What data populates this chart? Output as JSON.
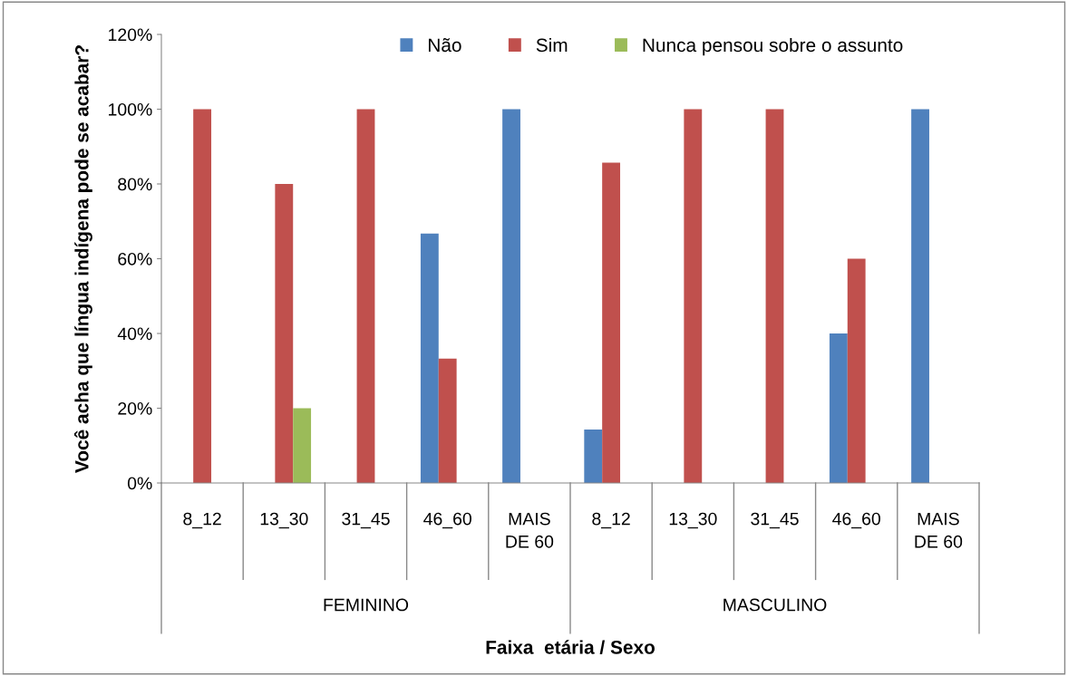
{
  "chart_data": {
    "type": "bar",
    "ylabel": "Você acha que língua indígena pode se acabar?",
    "xlabel": "Faixa  etária / Sexo",
    "categories": [
      "8_12",
      "13_30",
      "31_45",
      "46_60",
      "MAIS\nDE 60",
      "8_12",
      "13_30",
      "31_45",
      "46_60",
      "MAIS\nDE 60"
    ],
    "annotations": [
      "FEMININO",
      "MASCULINO"
    ],
    "series": [
      {
        "name": "Não",
        "color": "#4f81bd",
        "values": [
          null,
          null,
          null,
          66.7,
          100,
          14.3,
          null,
          null,
          40,
          100
        ]
      },
      {
        "name": "Sim",
        "color": "#c0504d",
        "values": [
          100,
          80,
          100,
          33.3,
          null,
          85.7,
          100,
          100,
          60,
          null
        ]
      },
      {
        "name": "Nunca pensou sobre o assunto",
        "color": "#9bbb59",
        "values": [
          null,
          20,
          null,
          null,
          null,
          null,
          null,
          null,
          null,
          null
        ]
      }
    ],
    "ylim": [
      0,
      120
    ],
    "yticks": [
      {
        "value": 0,
        "label": "0%"
      },
      {
        "value": 20,
        "label": "20%"
      },
      {
        "value": 40,
        "label": "40%"
      },
      {
        "value": 60,
        "label": "60%"
      },
      {
        "value": 80,
        "label": "80%"
      },
      {
        "value": 100,
        "label": "100%"
      },
      {
        "value": 120,
        "label": "120%"
      }
    ],
    "grid": false,
    "legend": "top"
  }
}
